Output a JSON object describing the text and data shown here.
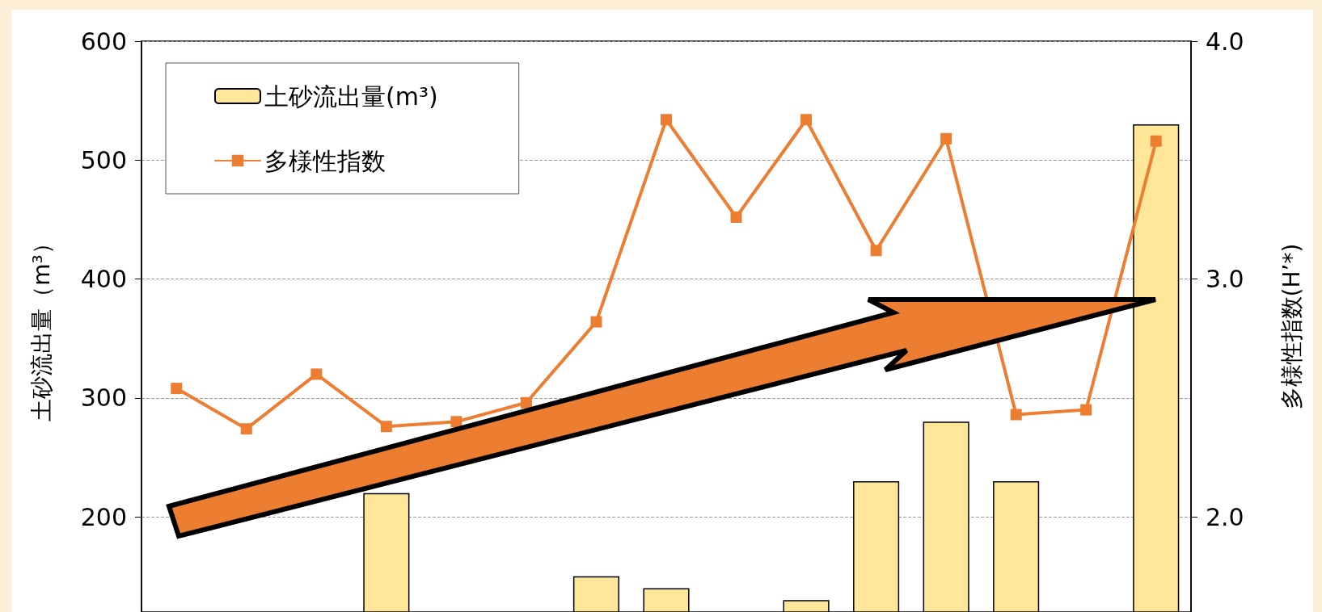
{
  "chart_data": {
    "type": "bar",
    "ylabel": "土砂流出量（m³）",
    "y2label": "多様性指数(H’*)",
    "categories": [
      null,
      null,
      null,
      null,
      null,
      null,
      null,
      null,
      null,
      null,
      null,
      null,
      null,
      null,
      null
    ],
    "series": [
      {
        "name": "土砂流出量(m³)",
        "color": "#ffe699",
        "values": [
          null,
          null,
          null,
          220,
          null,
          null,
          150,
          140,
          null,
          130,
          230,
          280,
          230,
          null,
          530
        ]
      },
      {
        "name": "多様性指数",
        "type": "line",
        "axis": "y2",
        "color": "#ed7d31",
        "marker": "square",
        "values": [
          2.54,
          2.37,
          2.6,
          2.38,
          2.4,
          2.48,
          2.82,
          3.67,
          3.26,
          3.67,
          3.12,
          3.59,
          2.43,
          2.45,
          3.58
        ]
      }
    ],
    "ylim": [
      120,
      600
    ],
    "yticks": [
      200,
      300,
      400,
      500,
      600
    ],
    "y2lim": [
      1.6,
      4.0
    ],
    "y2ticks": [
      {
        "value": 2,
        "label": "2.0"
      },
      {
        "value": 3,
        "label": "3.0"
      },
      {
        "value": 4,
        "label": "4.0"
      }
    ],
    "grid": "y",
    "legend": "top left",
    "tick_labels": "y"
  }
}
